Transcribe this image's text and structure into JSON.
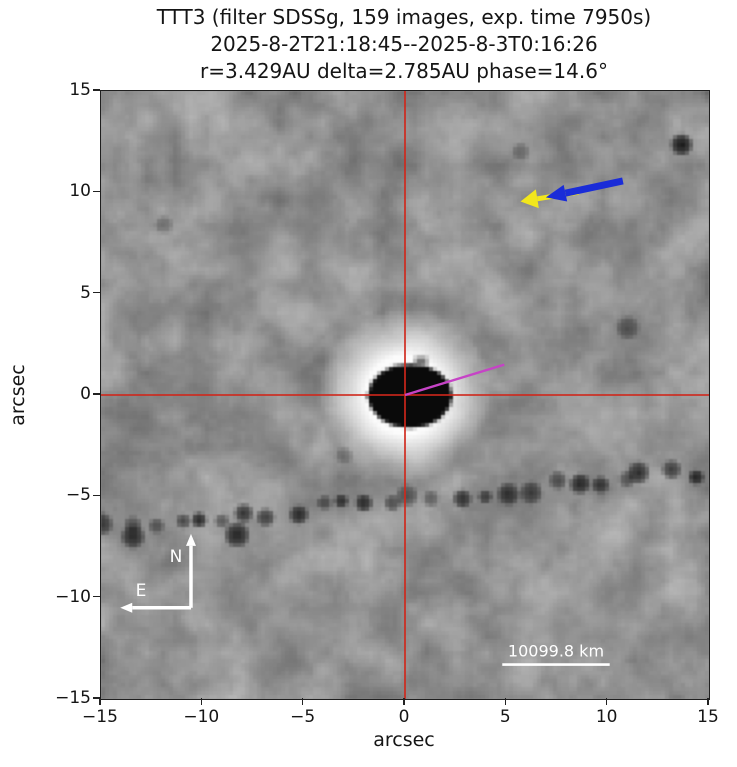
{
  "figure": {
    "title_lines": [
      "TTT3 (filter SDSSg, 159 images, exp. time 7950s)",
      "2025-8-2T21:18:45--2025-8-3T0:16:26",
      "r=3.429AU delta=2.785AU phase=14.6°"
    ]
  },
  "axes": {
    "xlabel": "arcsec",
    "ylabel": "arcsec",
    "x_ticks": [
      "−15",
      "−10",
      "−5",
      "0",
      "5",
      "10",
      "15"
    ],
    "y_ticks": [
      "15",
      "10",
      "5",
      "0",
      "−5",
      "−10",
      "−15"
    ],
    "x_tick_values": [
      -15,
      -10,
      -5,
      0,
      5,
      10,
      15
    ],
    "y_tick_values": [
      15,
      10,
      5,
      0,
      -5,
      -10,
      -15
    ]
  },
  "compass": {
    "north_label": "N",
    "east_label": "E"
  },
  "scale_bar": {
    "label": "10099.8 km"
  },
  "colors": {
    "crosshair": "#d0281c",
    "jet_line": "#c643c6",
    "velocity_arrow": "#1a2cd8",
    "sunward_arrow": "#f2e71c",
    "compass": "#ffffff",
    "scale_bar": "#ffffff",
    "image_base_gray": "#919191",
    "page_background": "#ffffff"
  },
  "chart_data": {
    "type": "heatmap",
    "title": "TTT3 (filter SDSSg, 159 images, exp. time 7950s)",
    "subtitle_date_range": "2025-8-2T21:18:45--2025-8-3T0:16:26",
    "subtitle_geometry": "r=3.429AU delta=2.785AU phase=14.6°",
    "xlabel": "arcsec",
    "ylabel": "arcsec",
    "xlim": [
      -15,
      15
    ],
    "ylim": [
      -15,
      15
    ],
    "x_ticks": [
      -15,
      -10,
      -5,
      0,
      5,
      10,
      15
    ],
    "y_ticks": [
      15,
      10,
      5,
      0,
      -5,
      -10,
      -15
    ],
    "image_description": "grayscale stacked telescope image: bright saturated comet coma at origin with black nucleus core, diagonal chain of dark star-trail blobs, mottled gray noise background",
    "annotations": {
      "crosshair_center": [
        0,
        0
      ],
      "jet_line": {
        "from": [
          0,
          0
        ],
        "to": [
          4.9,
          1.5
        ]
      },
      "velocity_arrow": {
        "tail": [
          10.75,
          10.56
        ],
        "tip": [
          6.95,
          9.75
        ]
      },
      "sunward_arrow": {
        "tail": [
          8.55,
          10.0
        ],
        "tip": [
          5.7,
          9.55
        ]
      },
      "compass": {
        "origin": [
          -10.56,
          -10.5
        ],
        "north_tip": [
          -10.56,
          -6.85
        ],
        "east_tip": [
          -14.05,
          -10.5
        ]
      },
      "scale_bar": {
        "x1": 4.8,
        "x2": 10.1,
        "y": -13.3,
        "label": "10099.8 km"
      }
    },
    "features": {
      "comet": {
        "center": [
          0,
          0
        ],
        "halo_radius": 4.3,
        "nucleus_rx": 2.1,
        "nucleus_ry": 1.6,
        "nucleus_offset": [
          0.25,
          -0.05
        ]
      },
      "star_trail": {
        "y_at_left": -6.6,
        "y_at_right": -3.75,
        "count": 26
      },
      "dark_spots": [
        {
          "x": 13.65,
          "y": 12.35,
          "r": 0.62,
          "a": 0.95
        },
        {
          "x": 11.0,
          "y": 3.3,
          "r": 0.65,
          "a": 0.5
        },
        {
          "x": 5.7,
          "y": 12.0,
          "r": 0.5,
          "a": 0.35
        },
        {
          "x": -11.9,
          "y": 8.4,
          "r": 0.5,
          "a": 0.3
        },
        {
          "x": -3.0,
          "y": -3.0,
          "r": 0.5,
          "a": 0.35
        }
      ],
      "bright_spots": [
        {
          "x": 10.6,
          "y": -6.2,
          "r": 1.6,
          "a": 0.3
        },
        {
          "x": -5.1,
          "y": 3.7,
          "r": 1.4,
          "a": 0.25
        },
        {
          "x": -10.4,
          "y": -9.8,
          "r": 2.0,
          "a": 0.18
        }
      ]
    }
  }
}
